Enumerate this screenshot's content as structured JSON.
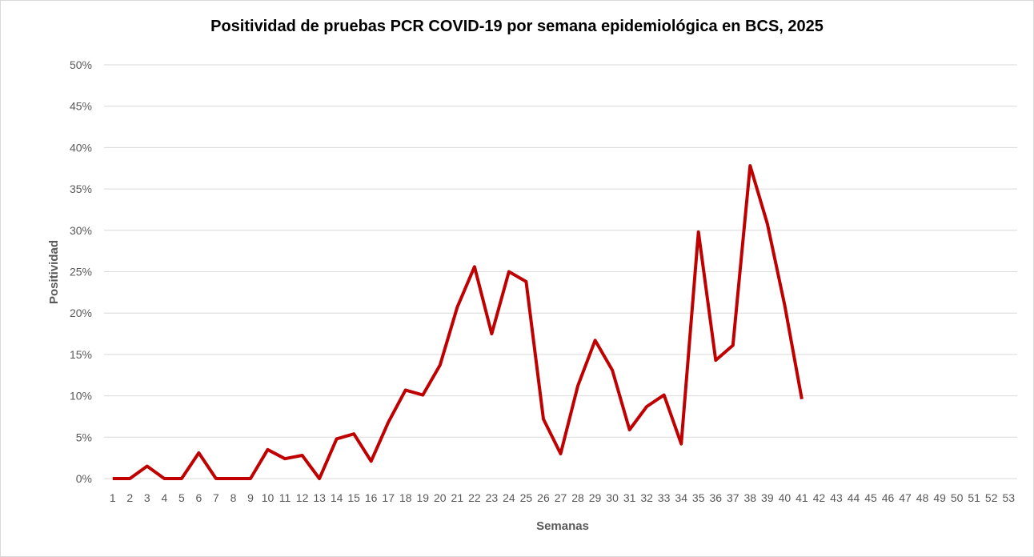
{
  "chart_data": {
    "type": "line",
    "title": "Positividad de pruebas PCR COVID-19 por semana epidemiológica en BCS, 2025",
    "xlabel": "Semanas",
    "ylabel": "Positividad",
    "ylim": [
      0,
      0.5
    ],
    "yticks": [
      "0%",
      "5%",
      "10%",
      "15%",
      "20%",
      "25%",
      "30%",
      "35%",
      "40%",
      "45%",
      "50%"
    ],
    "grid": true,
    "legend": "none",
    "color": "#c00000",
    "categories": [
      "1",
      "2",
      "3",
      "4",
      "5",
      "6",
      "7",
      "8",
      "9",
      "10",
      "11",
      "12",
      "13",
      "14",
      "15",
      "16",
      "17",
      "18",
      "19",
      "20",
      "21",
      "22",
      "23",
      "24",
      "25",
      "26",
      "27",
      "28",
      "29",
      "30",
      "31",
      "32",
      "33",
      "34",
      "35",
      "36",
      "37",
      "38",
      "39",
      "40",
      "41",
      "42",
      "43",
      "44",
      "45",
      "46",
      "47",
      "48",
      "49",
      "50",
      "51",
      "52",
      "53"
    ],
    "values": [
      0,
      0,
      0.015,
      0,
      0,
      0.031,
      0,
      0,
      0,
      0.035,
      0.024,
      0.028,
      0,
      0.048,
      0.054,
      0.021,
      0.068,
      0.107,
      0.101,
      0.137,
      0.207,
      0.256,
      0.175,
      0.25,
      0.238,
      0.072,
      0.03,
      0.112,
      0.167,
      0.131,
      0.059,
      0.087,
      0.101,
      0.042,
      0.298,
      0.143,
      0.161,
      0.378,
      0.308,
      0.21,
      0.096,
      null,
      null,
      null,
      null,
      null,
      null,
      null,
      null,
      null,
      null,
      null,
      null
    ]
  }
}
